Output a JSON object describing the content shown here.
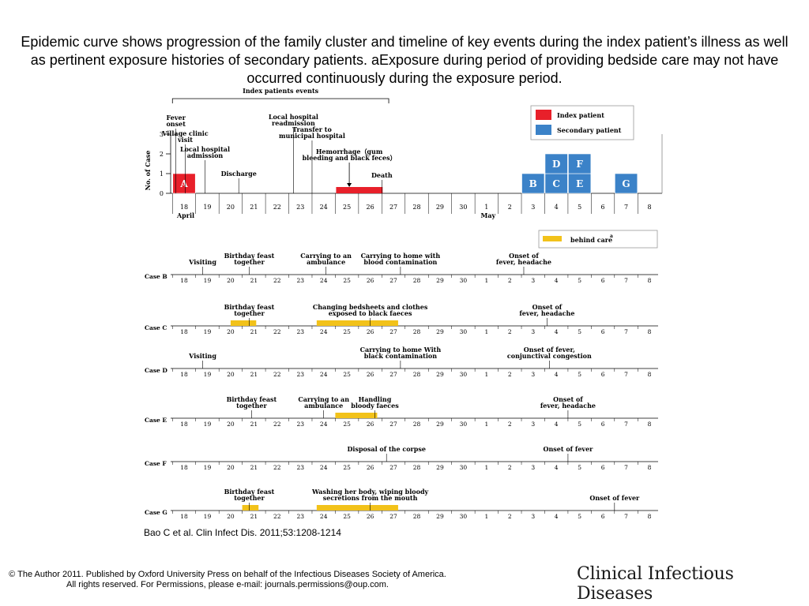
{
  "slide": {
    "title": "Epidemic curve shows progression of the family cluster and timeline of key events during the index patient’s illness as well as pertinent exposure histories of secondary patients. aExposure during period of providing bedside care may not have occurred continuously during the exposure period.",
    "citation": "Bao C et al. Clin Infect Dis. 2011;53:1208-1214",
    "copyright": "© The Author 2011. Published by Oxford University Press on behalf of the Infectious Diseases Society of America. All rights reserved. For Permissions, please e-mail: journals.permissions@oup.com.",
    "journal": "Clinical Infectious Diseases"
  },
  "chart_data": [
    {
      "type": "bar",
      "title": "",
      "ylabel": "No. of Case",
      "ylim": [
        0,
        3
      ],
      "y_ticks": [
        "0",
        "1",
        "2",
        "3"
      ],
      "days": [
        "18",
        "19",
        "20",
        "21",
        "22",
        "23",
        "24",
        "25",
        "26",
        "27",
        "28",
        "29",
        "30",
        "1",
        "2",
        "3",
        "4",
        "5",
        "6",
        "7",
        "8"
      ],
      "month_labels": [
        {
          "label": "April",
          "day_index": 0
        },
        {
          "label": "May",
          "day_index": 13
        }
      ],
      "bracket_label": "Index patients events",
      "bracket_range": [
        0,
        9
      ],
      "legend": [
        {
          "label": "Index patient",
          "color": "#e8202a"
        },
        {
          "label": "Secondary patient",
          "color": "#3b82c8"
        }
      ],
      "cases": [
        {
          "label": "A",
          "type": "index",
          "day_index": 0,
          "stack": 0
        },
        {
          "label": "B",
          "type": "secondary",
          "day_index": 15,
          "stack": 0
        },
        {
          "label": "C",
          "type": "secondary",
          "day_index": 16,
          "stack": 0
        },
        {
          "label": "D",
          "type": "secondary",
          "day_index": 16,
          "stack": 1
        },
        {
          "label": "E",
          "type": "secondary",
          "day_index": 17,
          "stack": 0
        },
        {
          "label": "F",
          "type": "secondary",
          "day_index": 17,
          "stack": 1
        },
        {
          "label": "G",
          "type": "secondary",
          "day_index": 19,
          "stack": 0
        }
      ],
      "hemorrhage_bar": {
        "start": 7,
        "end": 9,
        "color": "#e8202a"
      },
      "events": [
        {
          "lines": [
            "Fever",
            "onset"
          ],
          "at": 0.15,
          "label_y": 152
        },
        {
          "lines": [
            "Village clinic",
            "visit"
          ],
          "at": 0.55,
          "label_y": 172
        },
        {
          "lines": [
            "Local hospital",
            "admission"
          ],
          "at": 1.4,
          "label_y": 192
        },
        {
          "lines": [
            "Discharge"
          ],
          "at": 2.85,
          "label_y": 223
        },
        {
          "lines": [
            "Local hospital",
            "readmission"
          ],
          "at": 5.2,
          "label_y": 151
        },
        {
          "lines": [
            "Transfer to",
            "municipal hospital"
          ],
          "at": 6.0,
          "label_y": 167
        },
        {
          "lines": [
            "Hemorrhage（gum",
            "bleeding and black feces）"
          ],
          "at": 7.6,
          "label_y": 195,
          "arrow": true
        },
        {
          "lines": [
            "Death"
          ],
          "at": 9.0,
          "label_y": 225
        }
      ]
    },
    {
      "type": "timeline",
      "legend_label": "behind care",
      "legend_superscript": "a",
      "legend_color": "#f2c21a",
      "rows": [
        {
          "case": "Case B",
          "exposures": [],
          "events": [
            {
              "lines": [
                "Visiting"
              ],
              "at": 1.3
            },
            {
              "lines": [
                "Birthday feast",
                "together"
              ],
              "at": 3.3
            },
            {
              "lines": [
                "Carrying to an",
                "ambulance"
              ],
              "at": 6.6
            },
            {
              "lines": [
                "Carrying to home with",
                "blood contamination"
              ],
              "at": 9.8
            },
            {
              "lines": [
                "Onset of",
                "fever, headache"
              ],
              "at": 15.1
            }
          ]
        },
        {
          "case": "Case C",
          "exposures": [
            {
              "start": 2.5,
              "end": 3.6
            },
            {
              "start": 6.2,
              "end": 9.7
            }
          ],
          "events": [
            {
              "lines": [
                "Birthday feast",
                "together"
              ],
              "at": 3.3
            },
            {
              "lines": [
                "Changing bedsheets and clothes",
                "exposed to black faeces"
              ],
              "at": 8.5
            },
            {
              "lines": [
                "Onset of",
                "fever, headache"
              ],
              "at": 16.1
            }
          ]
        },
        {
          "case": "Case D",
          "exposures": [],
          "events": [
            {
              "lines": [
                "Visiting"
              ],
              "at": 1.3
            },
            {
              "lines": [
                "Carrying to home With",
                "black contamination"
              ],
              "at": 9.8
            },
            {
              "lines": [
                "Onset of fever,",
                "conjunctival congestion"
              ],
              "at": 16.2
            }
          ]
        },
        {
          "case": "Case E",
          "exposures": [
            {
              "start": 7.0,
              "end": 8.8
            }
          ],
          "events": [
            {
              "lines": [
                "Birthday feast",
                "together"
              ],
              "at": 3.4
            },
            {
              "lines": [
                "Carrying to an",
                "ambulance"
              ],
              "at": 6.5
            },
            {
              "lines": [
                "Handling",
                "bloody faeces"
              ],
              "at": 8.7
            },
            {
              "lines": [
                "Onset of",
                "fever, headache"
              ],
              "at": 17.0
            }
          ]
        },
        {
          "case": "Case F",
          "exposures": [],
          "events": [
            {
              "lines": [
                "Disposal of the corpse"
              ],
              "at": 9.2
            },
            {
              "lines": [
                "Onset of fever"
              ],
              "at": 17.0
            }
          ]
        },
        {
          "case": "Case G",
          "exposures": [
            {
              "start": 3.0,
              "end": 3.7
            },
            {
              "start": 6.2,
              "end": 9.7
            }
          ],
          "events": [
            {
              "lines": [
                "Birthday feast",
                "together"
              ],
              "at": 3.3
            },
            {
              "lines": [
                "Washing her body, wiping bloody",
                "secretions from the mouth"
              ],
              "at": 8.5
            },
            {
              "lines": [
                "Onset of fever"
              ],
              "at": 19.0
            }
          ]
        }
      ]
    }
  ]
}
